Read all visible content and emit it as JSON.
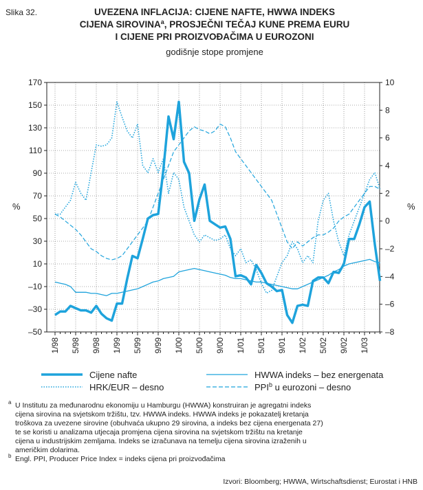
{
  "chart_data": {
    "type": "line",
    "figure_label": "Slika 32.",
    "title": [
      "UVEZENA INFLACIJA: CIJENE NAFTE, HWWA INDEKS",
      "CIJENA SIROVINA",
      "a",
      ", PROSJEČNI TEČAJ KUNE PREMA EURU",
      "I CIJENE PRI PROIZVOĐAČIMA U EUROZONI"
    ],
    "subtitle": "godišnje stope promjene",
    "y_label": "%",
    "y2_label": "%",
    "grid": true,
    "categories": [
      "1/98",
      null,
      null,
      null,
      "5/98",
      null,
      null,
      null,
      "9/98",
      null,
      null,
      null,
      "1/99",
      null,
      null,
      null,
      "5/99",
      null,
      null,
      null,
      "9/99",
      null,
      null,
      null,
      "1/00",
      null,
      null,
      null,
      "5/00",
      null,
      null,
      null,
      "9/00",
      null,
      null,
      null,
      "1/01",
      null,
      null,
      null,
      "5/01",
      null,
      null,
      null,
      "9/01",
      null,
      null,
      null,
      "1/02",
      null,
      null,
      null,
      "5/02",
      null,
      null,
      null,
      "9/02",
      null,
      null,
      null,
      "1/03",
      null,
      null,
      null
    ],
    "ylim": [
      -50,
      170
    ],
    "yticks": [
      {
        "value": -50,
        "label": "–50"
      },
      {
        "value": -30,
        "label": "–30"
      },
      {
        "value": -10,
        "label": "–10"
      },
      10,
      30,
      50,
      70,
      90,
      110,
      130,
      150,
      170
    ],
    "y2lim": [
      -8,
      10
    ],
    "y2ticks": [
      {
        "value": -8,
        "label": "–8"
      },
      {
        "value": -6,
        "label": "–6"
      },
      {
        "value": -4,
        "label": "–4"
      },
      {
        "value": -2,
        "label": "–2"
      },
      0,
      2,
      4,
      6,
      8,
      10
    ],
    "series": [
      {
        "name": [
          "Cijene nafte"
        ],
        "color": "#1ea3dc",
        "width": 3.5,
        "dash": "none",
        "values": [
          -35,
          -32,
          -32,
          -27,
          -29,
          -31,
          -31,
          -33,
          -27,
          -34,
          -38,
          -40,
          -25,
          -25,
          -3,
          17,
          15,
          32,
          50,
          53,
          54,
          93,
          140,
          120,
          153,
          100,
          90,
          48,
          67,
          80,
          48,
          45,
          42,
          43,
          32,
          -1,
          0,
          -2,
          -8,
          9,
          2,
          -7,
          -10,
          -14,
          -13,
          -35,
          -42,
          -27,
          -26,
          -27,
          -5,
          -2,
          -2,
          -7,
          3,
          2,
          10,
          32,
          32,
          45,
          60,
          65,
          27,
          -5
        ]
      },
      {
        "name": [
          "HWWA indeks – bez energenata"
        ],
        "color": "#1ea3dc",
        "width": 1.3,
        "dash": "none",
        "values": [
          -6,
          -7,
          -8,
          -10,
          -15,
          -15,
          -15,
          -16,
          -16,
          -17,
          -18,
          -16,
          -16,
          -15,
          -14,
          -13,
          -12,
          -10,
          -8,
          -6,
          -5,
          -3,
          -2,
          -1,
          3,
          4,
          5,
          6,
          5,
          4,
          3,
          2,
          1,
          0,
          -2,
          -3,
          -3,
          -4,
          -5,
          -6,
          -6,
          -7,
          -8,
          -9,
          -10,
          -11,
          -12,
          -12,
          -10,
          -8,
          -6,
          -4,
          -2,
          0,
          3,
          5,
          8,
          10,
          11,
          12,
          13,
          14,
          12,
          11
        ]
      },
      {
        "name": [
          "HRK/EUR – desno"
        ],
        "color": "#1ea3dc",
        "width": 1.6,
        "dash": "1.5 2",
        "axis": "y2",
        "values": [
          0.5,
          0.5,
          1,
          1.5,
          2.8,
          2,
          1.5,
          3.5,
          5.5,
          5.4,
          5.5,
          6,
          8.6,
          7.5,
          6.5,
          6,
          7,
          4,
          3.5,
          4.5,
          3.5,
          4.5,
          2,
          3.5,
          3,
          1,
          0,
          -1,
          -1.5,
          -1,
          -1.2,
          -1.4,
          -1.3,
          -1,
          -2,
          -2.5,
          -2,
          -3,
          -2.8,
          -3.5,
          -4.5,
          -5.2,
          -5,
          -4,
          -3,
          -2.5,
          -1.5,
          -2,
          -3,
          -2.5,
          -3,
          0,
          1.5,
          2,
          0,
          -1.5,
          -2.5,
          -1,
          0,
          1,
          2,
          3,
          3.5,
          2.3
        ]
      },
      {
        "name": [
          "PPI",
          "b",
          " u eurozoni – desno"
        ],
        "color": "#1ea3dc",
        "width": 1.2,
        "dash": "6 3",
        "axis": "y2",
        "values": [
          0.5,
          0.3,
          0,
          -0.3,
          -0.6,
          -1,
          -1.5,
          -2,
          -2.2,
          -2.5,
          -2.7,
          -2.8,
          -2.7,
          -2.5,
          -2,
          -1.5,
          -1,
          -0.5,
          0,
          1,
          2,
          3,
          4,
          5,
          5.5,
          6,
          6.5,
          6.8,
          6.6,
          6.5,
          6.3,
          6.5,
          7,
          6.8,
          6,
          5,
          4.5,
          4,
          3.5,
          3,
          2.5,
          2,
          1.5,
          0.5,
          -0.5,
          -1.5,
          -2,
          -1.5,
          -1.8,
          -1.5,
          -1.2,
          -1,
          -1,
          -0.8,
          -0.5,
          0,
          0.3,
          0.5,
          1,
          1.5,
          2,
          2.5,
          2.5,
          2.3
        ]
      }
    ],
    "footnotes": [
      {
        "mark": "a",
        "lines": [
          "U Institutu za međunarodnu ekonomiju u Hamburgu (HWWA) konstruiran je agregatni indeks",
          "cijena sirovina na svjetskom tržištu, tzv. HWWA indeks. HWWA indeks je pokazatelj kretanja",
          "troškova za uvezene sirovine (obuhvaća ukupno 29 sirovina, a indeks bez cijena energenata 27)",
          "te se koristi u analizama utjecaja promjena cijena sirovina na svjetskom tržištu na kretanje",
          "cijena u industrijskim zemljama. Indeks se izračunava na temelju cijena sirovina izraženih u",
          "američkim dolarima."
        ]
      },
      {
        "mark": "b",
        "lines": [
          "Engl. PPI, Producer Price Index = indeks cijena pri proizvođačima"
        ]
      }
    ],
    "source": "Izvori: Bloomberg; HWWA, Wirtschaftsdienst; Eurostat i HNB"
  }
}
